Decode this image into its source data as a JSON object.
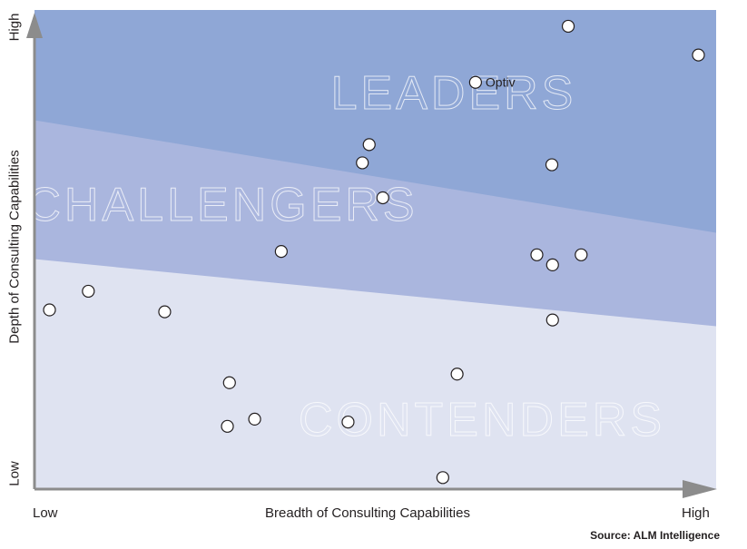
{
  "chart_data": {
    "type": "scatter",
    "title": "",
    "xlabel": "Breadth of Consulting Capabilities",
    "ylabel": "Depth of Consulting Capabilities",
    "x_tick_labels": {
      "low": "Low",
      "high": "High"
    },
    "y_tick_labels": {
      "low": "Low",
      "high": "High"
    },
    "xlim": [
      0,
      100
    ],
    "ylim": [
      0,
      100
    ],
    "grid": false,
    "regions": [
      {
        "name": "LEADERS",
        "color": "#8fa7d6",
        "boundary_left_y": 77,
        "boundary_right_y": 53.5
      },
      {
        "name": "CHALLENGERS",
        "color": "#aab6de",
        "boundary_left_y": 48,
        "boundary_right_y": 34
      },
      {
        "name": "CONTENDERS",
        "color": "#dfe3f1"
      }
    ],
    "points": [
      {
        "x": 78.3,
        "y": 96.6,
        "label": ""
      },
      {
        "x": 97.4,
        "y": 90.6,
        "label": ""
      },
      {
        "x": 64.7,
        "y": 84.9,
        "label": "Optiv"
      },
      {
        "x": 49.1,
        "y": 71.9,
        "label": ""
      },
      {
        "x": 48.1,
        "y": 68.1,
        "label": ""
      },
      {
        "x": 75.9,
        "y": 67.7,
        "label": ""
      },
      {
        "x": 51.1,
        "y": 60.8,
        "label": ""
      },
      {
        "x": 36.2,
        "y": 49.6,
        "label": ""
      },
      {
        "x": 73.7,
        "y": 48.9,
        "label": ""
      },
      {
        "x": 76.0,
        "y": 46.8,
        "label": ""
      },
      {
        "x": 80.2,
        "y": 48.9,
        "label": ""
      },
      {
        "x": 7.9,
        "y": 41.3,
        "label": ""
      },
      {
        "x": 2.2,
        "y": 37.4,
        "label": ""
      },
      {
        "x": 19.1,
        "y": 37.0,
        "label": ""
      },
      {
        "x": 76.0,
        "y": 35.3,
        "label": ""
      },
      {
        "x": 62.0,
        "y": 24.0,
        "label": ""
      },
      {
        "x": 28.6,
        "y": 22.2,
        "label": ""
      },
      {
        "x": 32.3,
        "y": 14.6,
        "label": ""
      },
      {
        "x": 46.0,
        "y": 14.0,
        "label": ""
      },
      {
        "x": 28.3,
        "y": 13.1,
        "label": ""
      },
      {
        "x": 59.9,
        "y": 2.4,
        "label": ""
      }
    ]
  },
  "source": "Source: ALM Intelligence"
}
